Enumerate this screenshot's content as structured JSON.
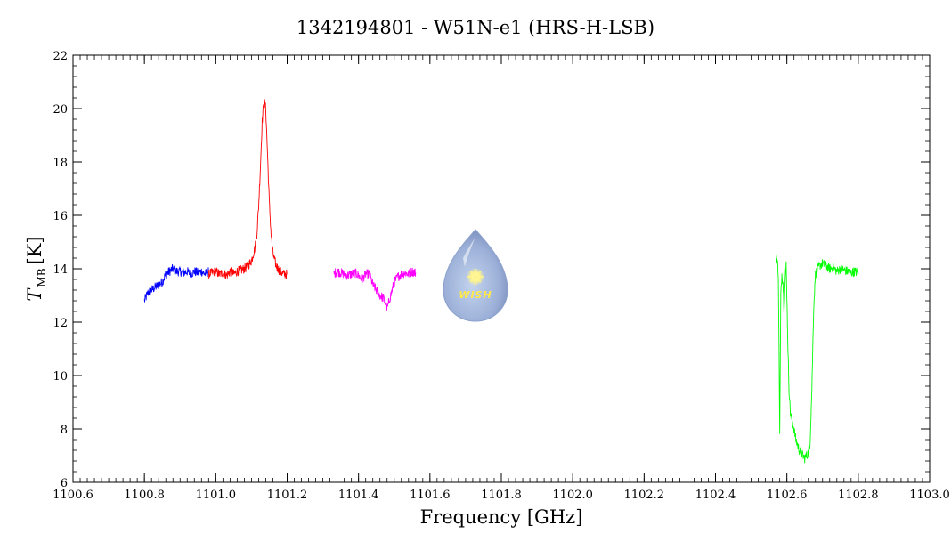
{
  "chart_data": {
    "type": "line",
    "title": "1342194801 - W51N-e1 (HRS-H-LSB)",
    "xlabel": "Frequency [GHz]",
    "ylabel_main": "T",
    "ylabel_sub": "MB",
    "ylabel_unit": "[K]",
    "xlim": [
      1100.6,
      1103.0
    ],
    "ylim": [
      6,
      22
    ],
    "xticks": [
      "1100.6",
      "1100.8",
      "1101.0",
      "1101.2",
      "1101.4",
      "1101.6",
      "1101.8",
      "1102.0",
      "1102.2",
      "1102.4",
      "1102.6",
      "1102.8",
      "1103.0"
    ],
    "yticks": [
      "6",
      "8",
      "10",
      "12",
      "14",
      "16",
      "18",
      "20",
      "22"
    ],
    "grid": false,
    "series": [
      {
        "color": "#0000ff",
        "x": [
          1100.8,
          1100.81,
          1100.82,
          1100.83,
          1100.84,
          1100.85,
          1100.86,
          1100.87,
          1100.88,
          1100.89,
          1100.9,
          1100.91,
          1100.92,
          1100.93,
          1100.94,
          1100.95,
          1100.96,
          1100.97,
          1100.98
        ],
        "y": [
          12.8,
          13.1,
          13.2,
          13.3,
          13.4,
          13.5,
          13.8,
          13.9,
          14.0,
          13.9,
          13.9,
          13.85,
          13.9,
          13.8,
          13.9,
          13.85,
          13.9,
          13.8,
          13.9
        ]
      },
      {
        "color": "#ff0000",
        "x": [
          1100.98,
          1100.99,
          1101.0,
          1101.01,
          1101.02,
          1101.03,
          1101.04,
          1101.05,
          1101.06,
          1101.07,
          1101.08,
          1101.09,
          1101.1,
          1101.11,
          1101.115,
          1101.12,
          1101.125,
          1101.13,
          1101.135,
          1101.14,
          1101.145,
          1101.15,
          1101.155,
          1101.16,
          1101.165,
          1101.17,
          1101.18,
          1101.19,
          1101.2
        ],
        "y": [
          13.8,
          13.85,
          13.9,
          13.8,
          13.85,
          13.75,
          13.9,
          13.8,
          13.9,
          13.95,
          14.0,
          14.1,
          14.3,
          14.8,
          15.3,
          16.3,
          17.8,
          19.5,
          20.3,
          20.0,
          18.3,
          16.5,
          15.3,
          14.6,
          14.3,
          14.1,
          13.9,
          13.8,
          13.8
        ]
      },
      {
        "color": "#ff00ff",
        "x": [
          1101.33,
          1101.34,
          1101.35,
          1101.36,
          1101.37,
          1101.38,
          1101.39,
          1101.4,
          1101.41,
          1101.42,
          1101.43,
          1101.44,
          1101.45,
          1101.46,
          1101.47,
          1101.48,
          1101.49,
          1101.5,
          1101.51,
          1101.52,
          1101.53,
          1101.54,
          1101.55,
          1101.56
        ],
        "y": [
          13.8,
          13.9,
          13.85,
          13.8,
          13.75,
          13.8,
          13.85,
          13.75,
          13.6,
          13.8,
          13.8,
          13.4,
          13.2,
          13.0,
          12.9,
          12.5,
          13.0,
          13.5,
          13.7,
          13.8,
          13.85,
          13.8,
          13.9,
          13.85
        ]
      },
      {
        "color": "#00ff00",
        "x": [
          1102.57,
          1102.573,
          1102.576,
          1102.578,
          1102.58,
          1102.583,
          1102.586,
          1102.589,
          1102.592,
          1102.595,
          1102.598,
          1102.6,
          1102.603,
          1102.606,
          1102.61,
          1102.615,
          1102.62,
          1102.625,
          1102.63,
          1102.635,
          1102.64,
          1102.645,
          1102.65,
          1102.655,
          1102.66,
          1102.665,
          1102.67,
          1102.675,
          1102.68,
          1102.69,
          1102.7,
          1102.71,
          1102.72,
          1102.73,
          1102.74,
          1102.75,
          1102.76,
          1102.77,
          1102.78,
          1102.79,
          1102.8
        ],
        "y": [
          14.5,
          14.3,
          13.8,
          11.0,
          7.8,
          13.0,
          13.8,
          13.5,
          12.5,
          13.5,
          14.2,
          13.0,
          11.0,
          9.5,
          8.6,
          8.3,
          8.0,
          7.6,
          7.4,
          7.2,
          7.1,
          7.0,
          6.9,
          7.0,
          7.1,
          7.5,
          9.5,
          12.5,
          13.8,
          14.1,
          14.2,
          14.1,
          14.0,
          14.05,
          13.9,
          14.0,
          13.95,
          13.9,
          13.85,
          13.9,
          13.85
        ]
      }
    ]
  },
  "logo": {
    "text": "WISH"
  }
}
